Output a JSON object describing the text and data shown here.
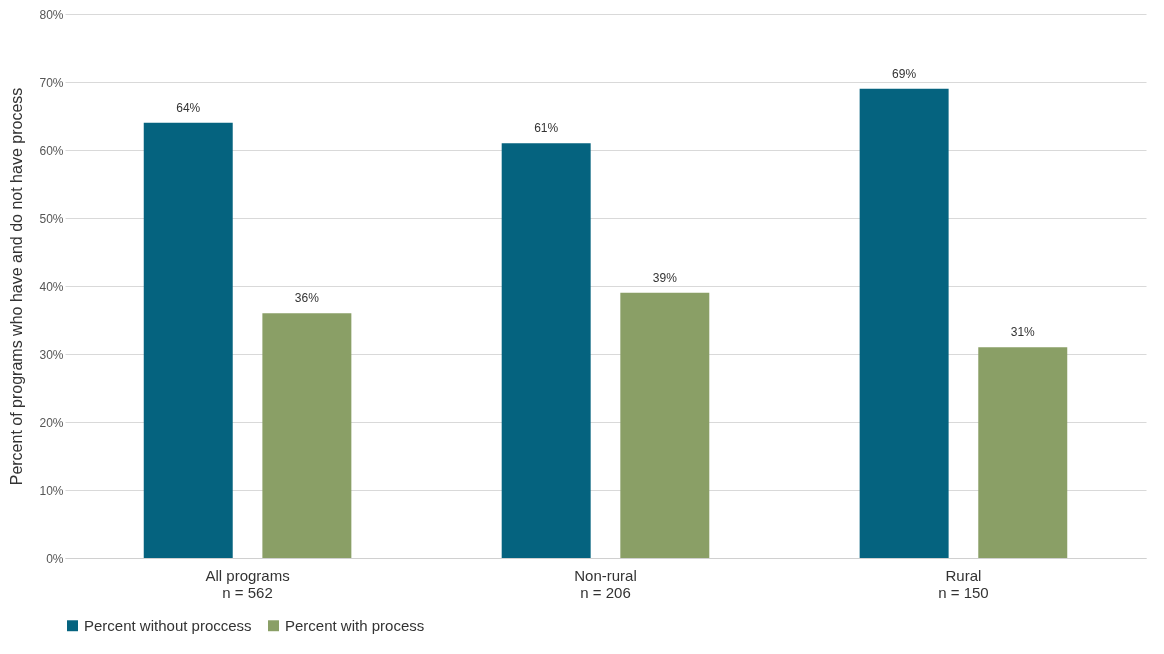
{
  "chart_data": {
    "type": "bar",
    "ylabel": "Percent of programs who have and do not have process",
    "categories": [
      "All programs\nn = 562",
      "Non-rural\nn = 206",
      "Rural\nn = 150"
    ],
    "series": [
      {
        "name": "Percent without proccess",
        "color": "#05637f",
        "values": [
          64,
          61,
          69
        ],
        "value_labels": [
          "64%",
          "61%",
          "69%"
        ]
      },
      {
        "name": "Percent with process",
        "color": "#8a9f66",
        "values": [
          36,
          39,
          31
        ],
        "value_labels": [
          "36%",
          "39%",
          "31%"
        ]
      }
    ],
    "ylim": [
      0,
      80
    ],
    "yticks": [
      {
        "value": 0,
        "label": "0%"
      },
      {
        "value": 10,
        "label": "10%"
      },
      {
        "value": 20,
        "label": "20%"
      },
      {
        "value": 30,
        "label": "30%"
      },
      {
        "value": 40,
        "label": "40%"
      },
      {
        "value": 50,
        "label": "50%"
      },
      {
        "value": 60,
        "label": "60%"
      },
      {
        "value": 70,
        "label": "70%"
      },
      {
        "value": 80,
        "label": "80%"
      }
    ],
    "grid": "y",
    "legend": "bottom"
  }
}
